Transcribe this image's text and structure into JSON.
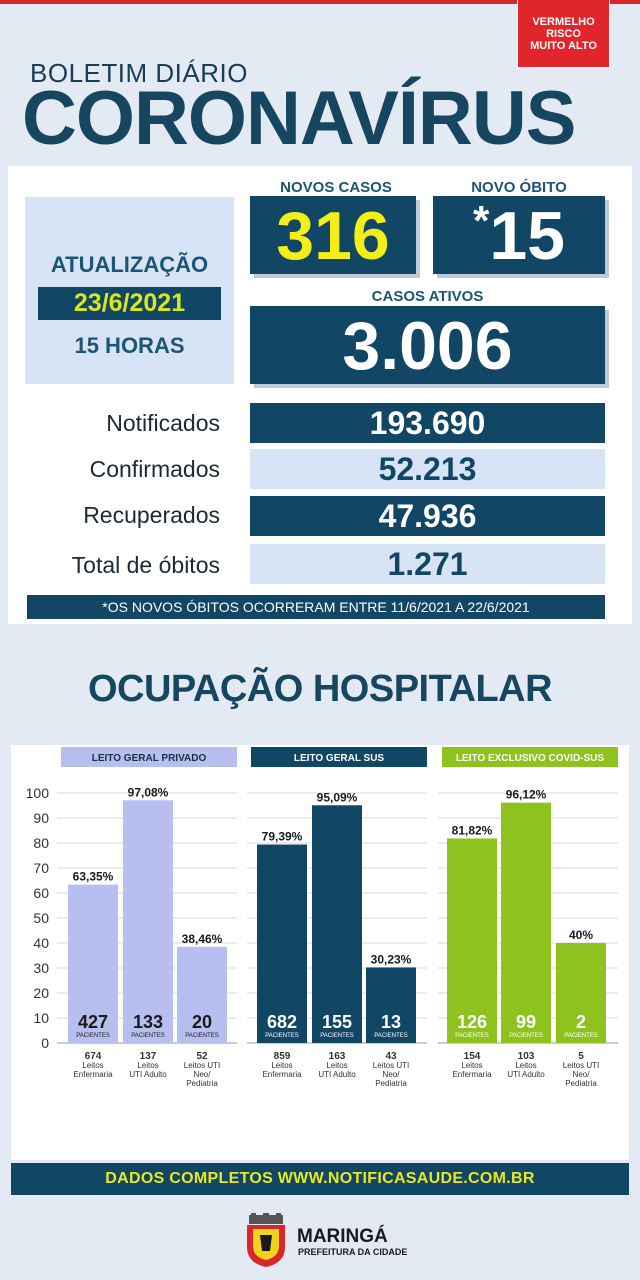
{
  "risk": {
    "line1": "VERMELHO",
    "line2": "RISCO",
    "line3": "MUITO ALTO",
    "color": "#e0262b"
  },
  "header": {
    "boletim": "BOLETIM DIÁRIO",
    "title": "CORONAVÍRUS"
  },
  "update": {
    "label": "ATUALIZAÇÃO",
    "date": "23/6/2021",
    "hour": "15 HORAS"
  },
  "novos_casos": {
    "label": "NOVOS CASOS",
    "value": "316"
  },
  "novo_obito": {
    "label": "NOVO ÓBITO",
    "asterisk": "*",
    "value": "15"
  },
  "casos_ativos": {
    "label": "CASOS ATIVOS",
    "value": "3.006"
  },
  "rows": [
    {
      "label": "Notificados",
      "value": "193.690"
    },
    {
      "label": "Confirmados",
      "value": "52.213"
    },
    {
      "label": "Recuperados",
      "value": "47.936"
    },
    {
      "label": "Total de óbitos",
      "value": "1.271"
    }
  ],
  "note": "*OS NOVOS ÓBITOS OCORRERAM ENTRE 11/6/2021 A 22/6/2021",
  "occupation_title": "OCUPAÇÃO HOSPITALAR",
  "footer": "DADOS COMPLETOS  WWW.NOTIFICASAUDE.COM.BR",
  "city": {
    "name": "MARINGÁ",
    "sub": "PREFEITURA DA CIDADE"
  },
  "colors": {
    "dark": "#114664",
    "accent_yellow": "#f3ee19",
    "private": "#b6bff0",
    "sus": "#114664",
    "covid": "#8dc21f"
  },
  "chart_data": {
    "type": "bar",
    "ylim": [
      0,
      100
    ],
    "yticks": [
      "0",
      "10",
      "20",
      "30",
      "40",
      "50",
      "60",
      "70",
      "80",
      "90",
      "100"
    ],
    "groups": [
      {
        "name": "LEITO GERAL PRIVADO",
        "bars": [
          {
            "pct": 63.35,
            "pct_label": "63,35%",
            "patients": "427",
            "beds": "674",
            "category": "Leitos Enfermaria"
          },
          {
            "pct": 97.08,
            "pct_label": "97,08%",
            "patients": "133",
            "beds": "137",
            "category": "Leitos UTI Adulto"
          },
          {
            "pct": 38.46,
            "pct_label": "38,46%",
            "patients": "20",
            "beds": "52",
            "category": "Leitos UTI Neo/ Pediatria"
          }
        ]
      },
      {
        "name": "LEITO GERAL SUS",
        "bars": [
          {
            "pct": 79.39,
            "pct_label": "79,39%",
            "patients": "682",
            "beds": "859",
            "category": "Leitos Enfermaria"
          },
          {
            "pct": 95.09,
            "pct_label": "95,09%",
            "patients": "155",
            "beds": "163",
            "category": "Leitos UTI Adulto"
          },
          {
            "pct": 30.23,
            "pct_label": "30,23%",
            "patients": "13",
            "beds": "43",
            "category": "Leitos UTI Neo/ Pediatria"
          }
        ]
      },
      {
        "name": "LEITO EXCLUSIVO COVID-SUS",
        "bars": [
          {
            "pct": 81.82,
            "pct_label": "81,82%",
            "patients": "126",
            "beds": "154",
            "category": "Leitos Enfermaria"
          },
          {
            "pct": 96.12,
            "pct_label": "96,12%",
            "patients": "99",
            "beds": "103",
            "category": "Leitos UTI Adulto"
          },
          {
            "pct": 40,
            "pct_label": "40%",
            "patients": "2",
            "beds": "5",
            "category": "Leitos UTI Neo/ Pediatria"
          }
        ]
      }
    ],
    "patients_label": "PACIENTES"
  }
}
